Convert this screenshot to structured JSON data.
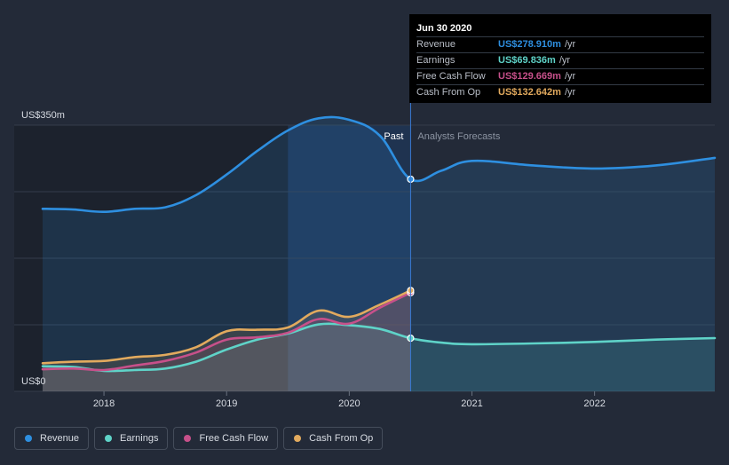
{
  "chart_data": {
    "type": "area",
    "y_unit_prefix": "US$",
    "y_top_label": "US$350m",
    "y_bottom_label": "US$0",
    "ylim": [
      0,
      350
    ],
    "xlim": [
      2017.5,
      2022.98
    ],
    "x_ticks": [
      2018,
      2019,
      2020,
      2021,
      2022
    ],
    "x_tick_labels": [
      "2018",
      "2019",
      "2020",
      "2021",
      "2022"
    ],
    "divider_x": 2020.5,
    "highlight_start_x": 2019.5,
    "past_label": "Past",
    "forecast_label": "Analysts Forecasts",
    "grid": "horizontal",
    "series": [
      {
        "name": "Revenue",
        "color": "#2e8fe0",
        "x": [
          2017.5,
          2017.75,
          2018.0,
          2018.25,
          2018.5,
          2018.75,
          2019.0,
          2019.25,
          2019.5,
          2019.75,
          2020.0,
          2020.25,
          2020.5,
          2020.75,
          2021.0,
          2021.5,
          2022.0,
          2022.5,
          2022.98
        ],
        "y": [
          240,
          239,
          236,
          240,
          242,
          258,
          285,
          316,
          343,
          359,
          357,
          336,
          278.91,
          290,
          303,
          297,
          293,
          297,
          307
        ],
        "forecast_from": 12
      },
      {
        "name": "Earnings",
        "color": "#5fd3c8",
        "x": [
          2017.5,
          2017.75,
          2018.0,
          2018.25,
          2018.5,
          2018.75,
          2019.0,
          2019.25,
          2019.5,
          2019.75,
          2020.0,
          2020.25,
          2020.5,
          2020.75,
          2021.0,
          2021.5,
          2022.0,
          2022.5,
          2022.98
        ],
        "y": [
          33,
          32,
          27,
          28,
          30,
          39,
          55,
          68,
          76,
          88,
          87,
          82,
          69.836,
          64,
          62,
          63,
          65,
          68,
          70
        ],
        "forecast_from": 12
      },
      {
        "name": "Free Cash Flow",
        "color": "#c7508a",
        "x": [
          2017.5,
          2017.75,
          2018.0,
          2018.25,
          2018.5,
          2018.75,
          2019.0,
          2019.25,
          2019.5,
          2019.75,
          2020.0,
          2020.25,
          2020.5
        ],
        "y": [
          29,
          30,
          28,
          34,
          40,
          51,
          68,
          71,
          77,
          95,
          89,
          110,
          129.669
        ],
        "forecast_from": null
      },
      {
        "name": "Cash From Op",
        "color": "#e2aa5e",
        "x": [
          2017.5,
          2017.75,
          2018.0,
          2018.25,
          2018.5,
          2018.75,
          2019.0,
          2019.25,
          2019.5,
          2019.75,
          2020.0,
          2020.25,
          2020.5
        ],
        "y": [
          37,
          39,
          40,
          45,
          48,
          58,
          79,
          81,
          84,
          106,
          98,
          114,
          132.642
        ],
        "forecast_from": null
      }
    ]
  },
  "tooltip": {
    "date": "Jun 30 2020",
    "rows": [
      {
        "label": "Revenue",
        "value": "US$278.910m",
        "unit": "/yr",
        "color": "#2e8fe0"
      },
      {
        "label": "Earnings",
        "value": "US$69.836m",
        "unit": "/yr",
        "color": "#5fd3c8"
      },
      {
        "label": "Free Cash Flow",
        "value": "US$129.669m",
        "unit": "/yr",
        "color": "#c7508a"
      },
      {
        "label": "Cash From Op",
        "value": "US$132.642m",
        "unit": "/yr",
        "color": "#e2aa5e"
      }
    ]
  },
  "legend": [
    {
      "label": "Revenue",
      "color": "#2e8fe0"
    },
    {
      "label": "Earnings",
      "color": "#5fd3c8"
    },
    {
      "label": "Free Cash Flow",
      "color": "#c7508a"
    },
    {
      "label": "Cash From Op",
      "color": "#e2aa5e"
    }
  ]
}
